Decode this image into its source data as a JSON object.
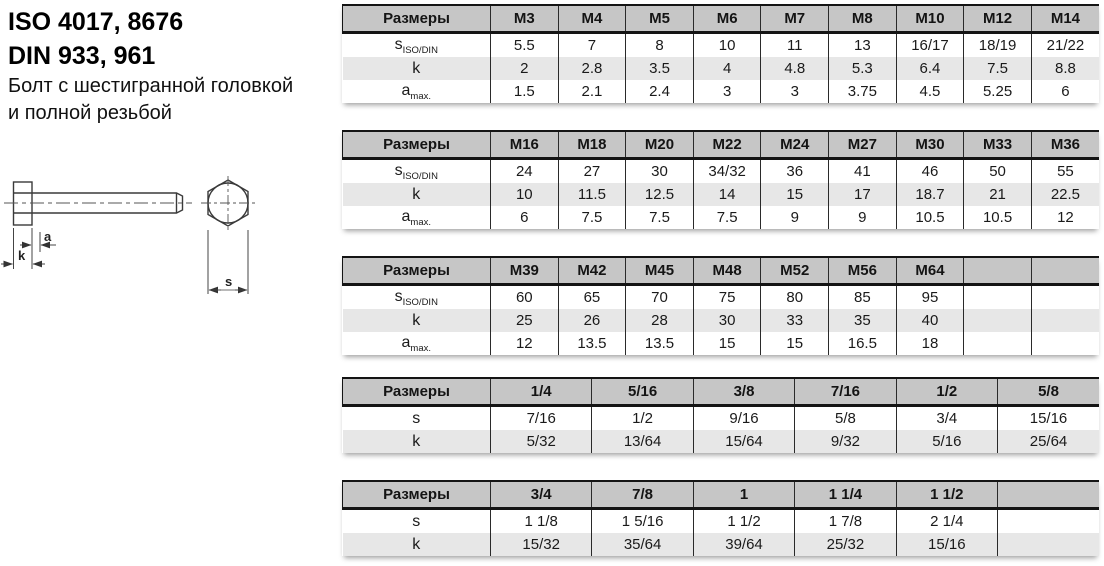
{
  "header": {
    "standard_line1": "ISO 4017, 8676",
    "standard_line2": "DIN 933, 961",
    "description_line1": "Болт с шестигранной головкой",
    "description_line2": "и полной резьбой"
  },
  "drawing": {
    "dim_a_label": "a",
    "dim_k_label": "k",
    "dim_s_label": "s"
  },
  "colors": {
    "table_header_bg": "#c6c6c6",
    "table_alt_row_bg": "#e7e7e7",
    "table_border": "#141414"
  },
  "tables": [
    {
      "header_label": "Размеры",
      "columns": [
        "M3",
        "M4",
        "M5",
        "M6",
        "M7",
        "M8",
        "M10",
        "M12",
        "M14"
      ],
      "rows": [
        {
          "label": "s",
          "sub": "ISO/DIN",
          "values": [
            "5.5",
            "7",
            "8",
            "10",
            "11",
            "13",
            "16/17",
            "18/19",
            "21/22"
          ]
        },
        {
          "label": "k",
          "sub": "",
          "values": [
            "2",
            "2.8",
            "3.5",
            "4",
            "4.8",
            "5.3",
            "6.4",
            "7.5",
            "8.8"
          ]
        },
        {
          "label": "a",
          "sub": "max.",
          "values": [
            "1.5",
            "2.1",
            "2.4",
            "3",
            "3",
            "3.75",
            "4.5",
            "5.25",
            "6"
          ]
        }
      ]
    },
    {
      "header_label": "Размеры",
      "columns": [
        "M16",
        "M18",
        "M20",
        "M22",
        "M24",
        "M27",
        "M30",
        "M33",
        "M36"
      ],
      "rows": [
        {
          "label": "s",
          "sub": "ISO/DIN",
          "values": [
            "24",
            "27",
            "30",
            "34/32",
            "36",
            "41",
            "46",
            "50",
            "55"
          ]
        },
        {
          "label": "k",
          "sub": "",
          "values": [
            "10",
            "11.5",
            "12.5",
            "14",
            "15",
            "17",
            "18.7",
            "21",
            "22.5"
          ]
        },
        {
          "label": "a",
          "sub": "max.",
          "values": [
            "6",
            "7.5",
            "7.5",
            "7.5",
            "9",
            "9",
            "10.5",
            "10.5",
            "12"
          ]
        }
      ]
    },
    {
      "header_label": "Размеры",
      "columns": [
        "M39",
        "M42",
        "M45",
        "M48",
        "M52",
        "M56",
        "M64",
        "",
        ""
      ],
      "rows": [
        {
          "label": "s",
          "sub": "ISO/DIN",
          "values": [
            "60",
            "65",
            "70",
            "75",
            "80",
            "85",
            "95",
            "",
            ""
          ]
        },
        {
          "label": "k",
          "sub": "",
          "values": [
            "25",
            "26",
            "28",
            "30",
            "33",
            "35",
            "40",
            "",
            ""
          ]
        },
        {
          "label": "a",
          "sub": "max.",
          "values": [
            "12",
            "13.5",
            "13.5",
            "15",
            "15",
            "16.5",
            "18",
            "",
            ""
          ]
        }
      ]
    },
    {
      "header_label": "Размеры",
      "columns": [
        "1/4",
        "5/16",
        "3/8",
        "7/16",
        "1/2",
        "5/8"
      ],
      "rows": [
        {
          "label": "s",
          "sub": "",
          "values": [
            "7/16",
            "1/2",
            "9/16",
            "5/8",
            "3/4",
            "15/16"
          ]
        },
        {
          "label": "k",
          "sub": "",
          "values": [
            "5/32",
            "13/64",
            "15/64",
            "9/32",
            "5/16",
            "25/64"
          ]
        }
      ]
    },
    {
      "header_label": "Размеры",
      "columns": [
        "3/4",
        "7/8",
        "1",
        "1 1/4",
        "1 1/2",
        ""
      ],
      "rows": [
        {
          "label": "s",
          "sub": "",
          "values": [
            "1 1/8",
            "1 5/16",
            "1 1/2",
            "1 7/8",
            "2 1/4",
            ""
          ]
        },
        {
          "label": "k",
          "sub": "",
          "values": [
            "15/32",
            "35/64",
            "39/64",
            "25/32",
            "15/16",
            ""
          ]
        }
      ]
    }
  ]
}
